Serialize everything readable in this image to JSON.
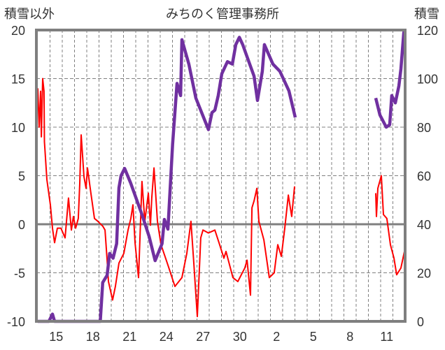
{
  "chart_data": {
    "type": "line",
    "title": "みちのく管理事務所",
    "ylabel_left": "積雪以外",
    "ylabel_right": "積雪",
    "ylim_left": [
      -10,
      20
    ],
    "ylim_right": [
      0,
      120
    ],
    "yticks_left": [
      "20",
      "15",
      "10",
      "5",
      "0",
      "-5",
      "-10"
    ],
    "yticks_right": [
      "120",
      "100",
      "80",
      "60",
      "40",
      "20",
      "0"
    ],
    "x_unit": "days from start (day 0 = 14th)",
    "xlim": [
      0,
      30
    ],
    "xticks": [
      {
        "day": 1,
        "label": "15"
      },
      {
        "day": 4,
        "label": "18"
      },
      {
        "day": 7,
        "label": "21"
      },
      {
        "day": 10,
        "label": "24"
      },
      {
        "day": 13,
        "label": "27"
      },
      {
        "day": 16,
        "label": "30"
      },
      {
        "day": 19,
        "label": "2"
      },
      {
        "day": 22,
        "label": "5"
      },
      {
        "day": 25,
        "label": "8"
      },
      {
        "day": 28,
        "label": "11"
      }
    ],
    "grid": true,
    "series": [
      {
        "name": "積雪以外",
        "axis": "left",
        "color": "#ff0000",
        "points": [
          [
            0,
            14
          ],
          [
            0.11,
            10
          ],
          [
            0.23,
            13.7
          ],
          [
            0.29,
            9
          ],
          [
            0.4,
            15
          ],
          [
            0.51,
            13.7
          ],
          [
            0.54,
            8.5
          ],
          [
            0.74,
            4.6
          ],
          [
            1.03,
            2
          ],
          [
            1.2,
            -0.4
          ],
          [
            1.37,
            -1.9
          ],
          [
            1.6,
            -0.4
          ],
          [
            1.89,
            -0.4
          ],
          [
            2.23,
            -1.4
          ],
          [
            2.51,
            2.7
          ],
          [
            2.74,
            -0.6
          ],
          [
            2.91,
            0.8
          ],
          [
            3.09,
            -0.4
          ],
          [
            3.31,
            0.6
          ],
          [
            3.43,
            4.2
          ],
          [
            3.54,
            9.2
          ],
          [
            3.77,
            4.9
          ],
          [
            3.94,
            3.7
          ],
          [
            4.06,
            5.8
          ],
          [
            4.34,
            3.2
          ],
          [
            4.63,
            0.6
          ],
          [
            4.91,
            0.3
          ],
          [
            5.31,
            -0.2
          ],
          [
            5.49,
            -0.6
          ],
          [
            5.66,
            -3.7
          ],
          [
            5.77,
            -5.9
          ],
          [
            6.11,
            -7.8
          ],
          [
            6.34,
            -6.4
          ],
          [
            6.63,
            -4
          ],
          [
            7.03,
            -3
          ],
          [
            7.37,
            -0.6
          ],
          [
            7.6,
            0.6
          ],
          [
            7.77,
            2
          ],
          [
            7.94,
            -1.9
          ],
          [
            8.23,
            -5.5
          ],
          [
            8.51,
            4.4
          ],
          [
            8.74,
            0.3
          ],
          [
            9.03,
            3.2
          ],
          [
            9.2,
            -0.1
          ],
          [
            9.31,
            2.7
          ],
          [
            9.49,
            5.8
          ],
          [
            9.77,
            0.3
          ],
          [
            10.06,
            -2.1
          ],
          [
            10.63,
            -4.2
          ],
          [
            11.2,
            -6.4
          ],
          [
            11.77,
            -5.5
          ],
          [
            12.17,
            -3
          ],
          [
            12.51,
            0.3
          ],
          [
            12.74,
            -4
          ],
          [
            13.03,
            -9.5
          ],
          [
            13.31,
            -1.4
          ],
          [
            13.49,
            -0.6
          ],
          [
            13.94,
            -0.9
          ],
          [
            14.46,
            -0.6
          ],
          [
            14.8,
            -1.9
          ],
          [
            15.2,
            -3.5
          ],
          [
            15.37,
            -2.8
          ],
          [
            15.94,
            -5.5
          ],
          [
            16.34,
            -5.9
          ],
          [
            16.91,
            -4.5
          ],
          [
            17.09,
            -3.7
          ],
          [
            17.37,
            -7.3
          ],
          [
            17.49,
            1.7
          ],
          [
            17.66,
            2.4
          ],
          [
            17.89,
            3.7
          ],
          [
            18.06,
            0.3
          ],
          [
            18.46,
            -1.6
          ],
          [
            18.91,
            -5.5
          ],
          [
            19.31,
            -5
          ],
          [
            19.6,
            -2.1
          ],
          [
            19.89,
            -3.3
          ],
          [
            20.17,
            -0.4
          ],
          [
            20.46,
            3
          ],
          [
            20.74,
            0.8
          ],
          [
            20.97,
            3.9
          ],
          null,
          [
            27.6,
            3.2
          ],
          [
            27.66,
            0.8
          ],
          [
            27.77,
            3.7
          ],
          [
            28.06,
            5
          ],
          [
            28.23,
            1
          ],
          [
            28.51,
            0.6
          ],
          [
            28.8,
            -2.1
          ],
          [
            29.09,
            -3.5
          ],
          [
            29.31,
            -5.2
          ],
          [
            29.66,
            -4.5
          ],
          [
            29.94,
            -2.8
          ]
        ]
      },
      {
        "name": "積雪",
        "axis": "right",
        "color": "#7030a0",
        "points": [
          [
            0,
            0
          ],
          [
            0.91,
            0
          ],
          [
            1.2,
            3
          ],
          [
            1.37,
            0
          ],
          [
            4.74,
            0
          ],
          [
            5.1,
            0
          ],
          [
            5.3,
            16
          ],
          [
            5.66,
            19
          ],
          [
            5.87,
            28
          ],
          [
            6.15,
            26
          ],
          [
            6.44,
            32
          ],
          [
            6.63,
            55
          ],
          [
            6.8,
            60
          ],
          [
            7.09,
            63
          ],
          [
            7.58,
            57
          ],
          [
            8.51,
            44
          ],
          [
            9.09,
            35
          ],
          [
            9.58,
            25
          ],
          [
            10.15,
            32
          ],
          [
            10.34,
            42
          ],
          [
            10.63,
            38
          ],
          [
            11.01,
            73
          ],
          [
            11.37,
            98
          ],
          [
            11.66,
            93
          ],
          [
            11.77,
            116
          ],
          [
            12.34,
            106
          ],
          [
            12.91,
            92
          ],
          [
            13.94,
            79
          ],
          [
            14.23,
            86
          ],
          [
            14.46,
            87
          ],
          [
            14.74,
            93
          ],
          [
            15.03,
            102
          ],
          [
            15.49,
            107
          ],
          [
            15.89,
            106
          ],
          [
            16.17,
            114
          ],
          [
            16.46,
            117
          ],
          [
            16.74,
            114
          ],
          [
            17.09,
            109
          ],
          [
            17.66,
            101
          ],
          [
            17.94,
            91
          ],
          [
            18.34,
            103
          ],
          [
            18.51,
            114
          ],
          [
            19.2,
            106
          ],
          [
            19.77,
            103
          ],
          [
            20.51,
            95
          ],
          [
            21.03,
            84
          ],
          null,
          [
            27.6,
            92
          ],
          [
            27.94,
            85
          ],
          [
            28.46,
            80
          ],
          [
            28.74,
            81
          ],
          [
            28.91,
            93
          ],
          [
            29.2,
            90
          ],
          [
            29.49,
            97
          ],
          [
            29.66,
            104
          ],
          [
            29.89,
            119
          ],
          [
            29.94,
            116
          ]
        ]
      }
    ]
  }
}
